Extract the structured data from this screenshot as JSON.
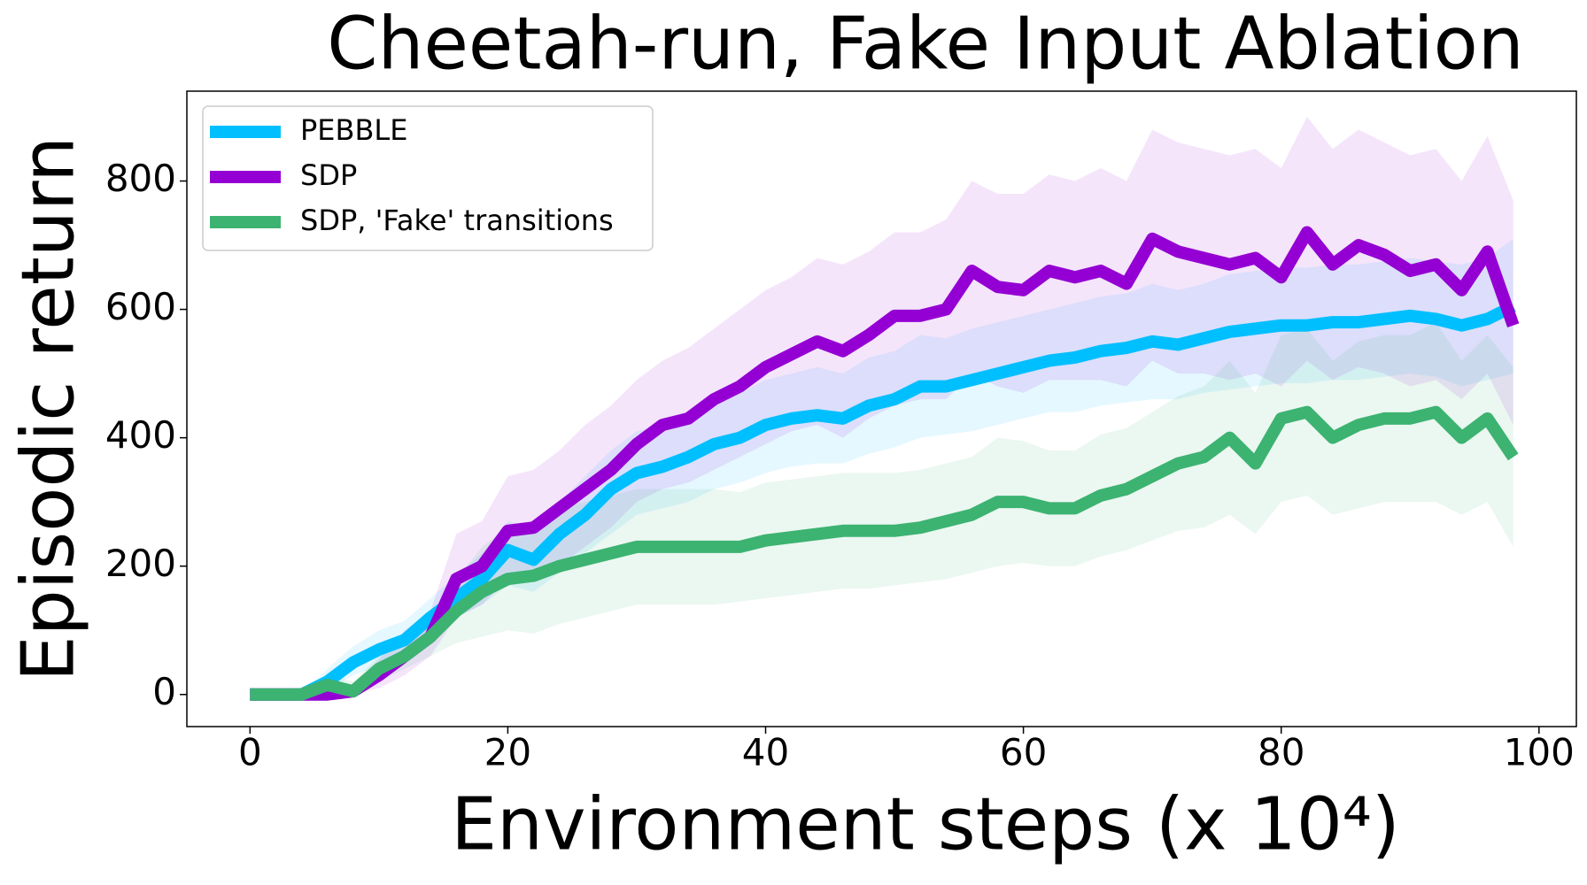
{
  "chart_data": {
    "type": "line",
    "title": "Cheetah-run, Fake Input Ablation",
    "xlabel": "Environment steps (x 10⁴)",
    "ylabel": "Episodic return",
    "xlim": [
      -4.9,
      102.9
    ],
    "ylim": [
      -50,
      940
    ],
    "xticks": [
      0,
      20,
      40,
      60,
      80,
      100
    ],
    "yticks": [
      0,
      200,
      400,
      600,
      800
    ],
    "legend": "upper left",
    "x": [
      0,
      2,
      4,
      6,
      8,
      10,
      12,
      14,
      16,
      18,
      20,
      22,
      24,
      26,
      28,
      30,
      32,
      34,
      36,
      38,
      40,
      42,
      44,
      46,
      48,
      50,
      52,
      54,
      56,
      58,
      60,
      62,
      64,
      66,
      68,
      70,
      72,
      74,
      76,
      78,
      80,
      82,
      84,
      86,
      88,
      90,
      92,
      94,
      96,
      98
    ],
    "series": [
      {
        "name": "PEBBLE",
        "color": "#00bfff",
        "values": [
          0,
          0,
          0,
          20,
          50,
          70,
          85,
          120,
          150,
          180,
          225,
          210,
          250,
          280,
          320,
          345,
          355,
          370,
          390,
          400,
          420,
          430,
          435,
          430,
          450,
          460,
          480,
          480,
          490,
          500,
          510,
          520,
          525,
          535,
          540,
          550,
          545,
          555,
          565,
          570,
          575,
          575,
          580,
          580,
          585,
          590,
          585,
          575,
          585,
          605
        ],
        "lower": [
          0,
          0,
          0,
          5,
          30,
          45,
          60,
          90,
          120,
          140,
          170,
          160,
          190,
          220,
          250,
          280,
          290,
          300,
          320,
          330,
          345,
          355,
          360,
          360,
          375,
          385,
          400,
          405,
          410,
          420,
          430,
          440,
          440,
          450,
          455,
          460,
          460,
          470,
          475,
          480,
          485,
          485,
          490,
          490,
          495,
          500,
          495,
          480,
          490,
          500
        ],
        "upper": [
          0,
          0,
          0,
          40,
          75,
          100,
          115,
          150,
          185,
          220,
          270,
          260,
          300,
          340,
          380,
          410,
          420,
          440,
          460,
          470,
          490,
          500,
          510,
          500,
          525,
          535,
          560,
          555,
          570,
          580,
          590,
          600,
          610,
          620,
          625,
          640,
          630,
          640,
          655,
          660,
          665,
          665,
          670,
          670,
          675,
          680,
          675,
          670,
          680,
          710
        ]
      },
      {
        "name": "SDP",
        "color": "#9400d3",
        "values": [
          0,
          0,
          0,
          0,
          5,
          30,
          60,
          90,
          180,
          200,
          255,
          260,
          290,
          320,
          350,
          390,
          420,
          430,
          460,
          480,
          510,
          530,
          550,
          535,
          560,
          590,
          590,
          600,
          660,
          635,
          630,
          660,
          650,
          660,
          640,
          710,
          690,
          680,
          670,
          680,
          650,
          720,
          670,
          700,
          685,
          660,
          670,
          630,
          690,
          575
        ],
        "lower": [
          0,
          0,
          0,
          0,
          0,
          10,
          30,
          60,
          120,
          140,
          180,
          180,
          200,
          230,
          260,
          300,
          320,
          330,
          350,
          370,
          390,
          410,
          420,
          400,
          430,
          450,
          460,
          460,
          500,
          480,
          470,
          490,
          490,
          490,
          480,
          520,
          500,
          500,
          490,
          500,
          480,
          520,
          490,
          510,
          500,
          480,
          490,
          460,
          500,
          420
        ],
        "upper": [
          0,
          0,
          0,
          0,
          15,
          55,
          100,
          130,
          250,
          270,
          340,
          350,
          380,
          420,
          450,
          490,
          520,
          540,
          570,
          600,
          630,
          650,
          680,
          670,
          690,
          720,
          720,
          740,
          800,
          780,
          780,
          810,
          800,
          820,
          800,
          880,
          860,
          850,
          840,
          850,
          820,
          900,
          850,
          880,
          860,
          840,
          850,
          800,
          870,
          770
        ]
      },
      {
        "name": "SDP, 'Fake' transitions",
        "color": "#3cb371",
        "values": [
          0,
          0,
          0,
          15,
          5,
          40,
          60,
          90,
          130,
          160,
          180,
          185,
          200,
          210,
          220,
          230,
          230,
          230,
          230,
          230,
          240,
          245,
          250,
          255,
          255,
          255,
          260,
          270,
          280,
          300,
          300,
          290,
          290,
          310,
          320,
          340,
          360,
          370,
          400,
          360,
          430,
          440,
          400,
          420,
          430,
          430,
          440,
          400,
          430,
          370
        ],
        "lower": [
          0,
          0,
          0,
          0,
          0,
          20,
          40,
          60,
          80,
          90,
          100,
          95,
          110,
          120,
          130,
          140,
          140,
          140,
          140,
          145,
          150,
          155,
          160,
          165,
          165,
          170,
          175,
          180,
          190,
          200,
          205,
          200,
          200,
          215,
          225,
          240,
          255,
          260,
          280,
          250,
          300,
          310,
          280,
          290,
          300,
          300,
          300,
          280,
          300,
          230
        ],
        "upper": [
          0,
          0,
          0,
          30,
          20,
          60,
          85,
          120,
          180,
          230,
          260,
          270,
          290,
          300,
          310,
          320,
          320,
          320,
          320,
          315,
          330,
          335,
          340,
          345,
          345,
          345,
          350,
          360,
          370,
          400,
          395,
          380,
          380,
          405,
          415,
          440,
          465,
          480,
          520,
          470,
          560,
          570,
          520,
          550,
          560,
          560,
          580,
          520,
          560,
          510
        ]
      }
    ]
  }
}
